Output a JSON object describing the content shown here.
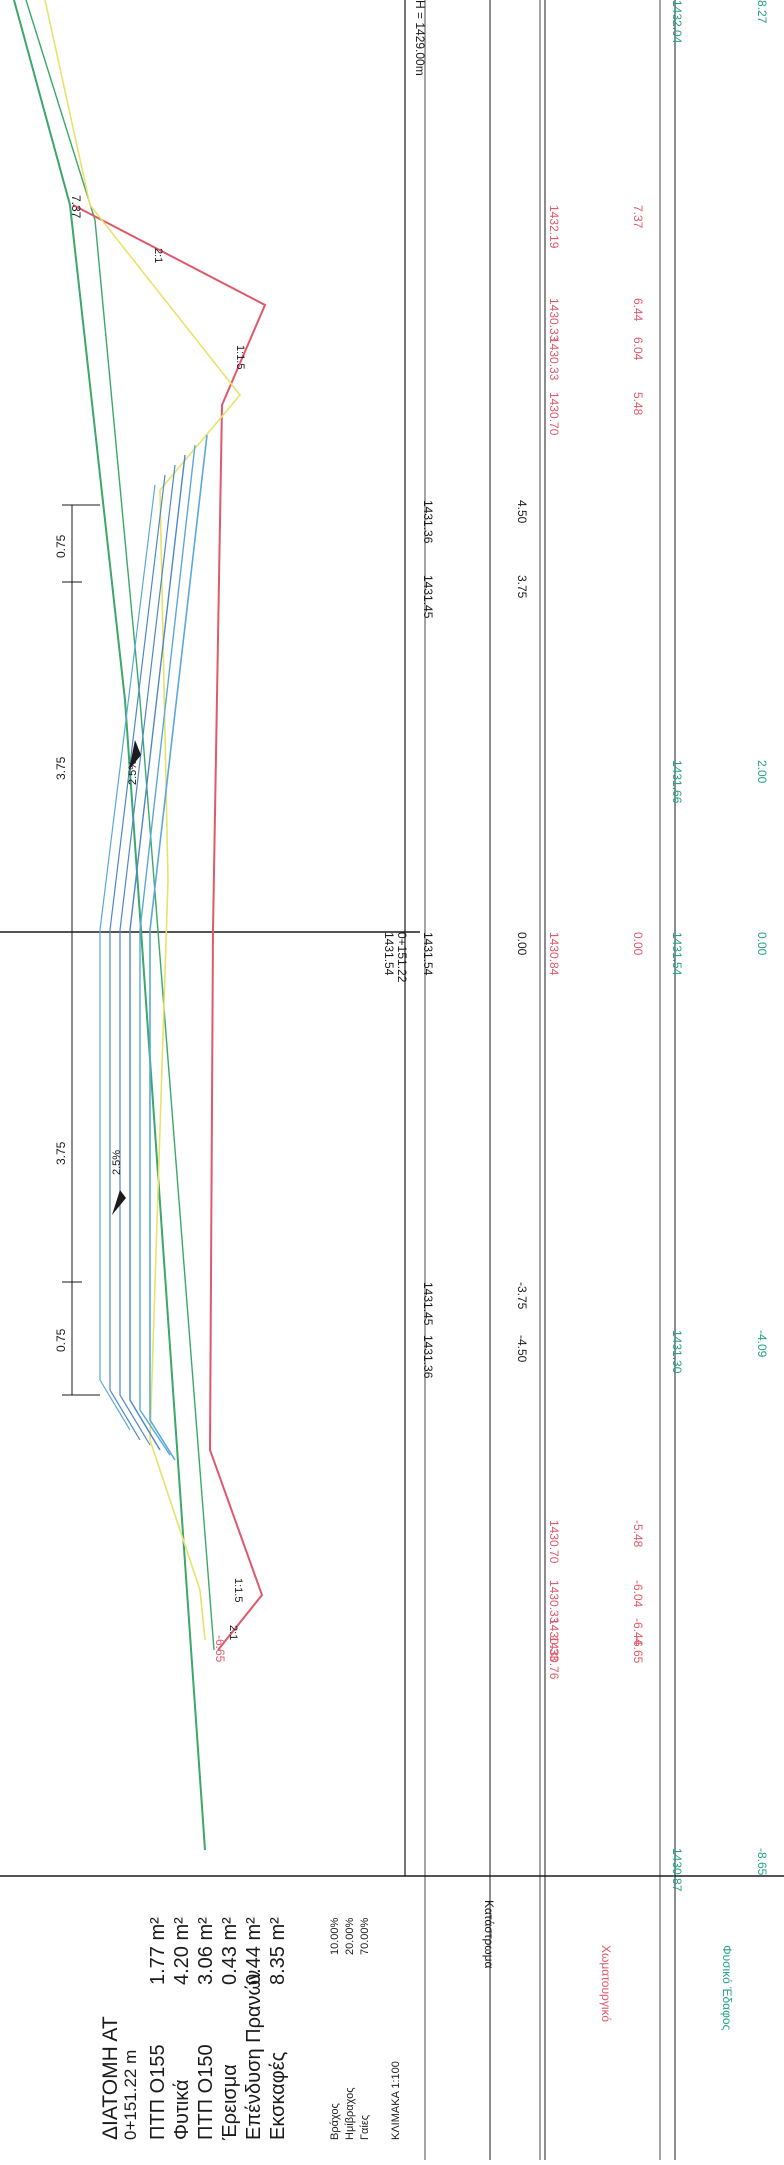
{
  "legend": {
    "title": "ΔΙΑΤΟΜΗ ΑΤ",
    "chainage": "0+151.22 m",
    "quantities": [
      {
        "label": "ΠΤΠ Ο155",
        "value": "1.77 m²"
      },
      {
        "label": "Φυτικά",
        "value": "4.20 m²"
      },
      {
        "label": "ΠΤΠ Ο150",
        "value": "3.06 m²"
      },
      {
        "label": "Έρεισμα",
        "value": "0.43 m²"
      },
      {
        "label": "Επένδυση Πρανών",
        "value": "0.44 m²"
      },
      {
        "label": "Εκσκαφές",
        "value": "8.35 m²"
      }
    ],
    "soil": [
      {
        "label": "Βράχος",
        "value": "10.00%"
      },
      {
        "label": "Ημίβραχος",
        "value": "20.00%"
      },
      {
        "label": "Γαίες",
        "value": "70.00%"
      }
    ],
    "scale": "ΚΛΙΜΑΚΑ 1:100"
  },
  "datum": "H = 1429.00m",
  "centerline": {
    "elevation": "1431.54",
    "chainage": "0+151.22"
  },
  "dims": {
    "left_shoulder": "0.75",
    "left_lane": "3.75",
    "right_lane": "3.75",
    "right_shoulder": "0.75"
  },
  "slope_labels": {
    "left_upper": "1:1.5",
    "left_lower": "2:1",
    "right_upper": "1:1.5",
    "right_lower": "2:1"
  },
  "crossfall": {
    "left": "2.5%",
    "right": "2.5%"
  },
  "edge_labels": {
    "left": "-6.65",
    "right": "7.37"
  },
  "rows": [
    {
      "name": "Κατάστρωμα",
      "color": "#1b1b1b",
      "stations": [
        {
          "offset": "-4.50",
          "elev": "1431.36"
        },
        {
          "offset": "-3.75",
          "elev": "1431.45"
        },
        {
          "offset": "0.00",
          "elev": "1431.54"
        },
        {
          "offset": "3.75",
          "elev": "1431.45"
        },
        {
          "offset": "4.50",
          "elev": "1431.36"
        }
      ]
    },
    {
      "name": "Χωματουργικό",
      "color": "#d4424f",
      "stations": [
        {
          "offset": "-6.65",
          "elev": "1430.76"
        },
        {
          "offset": "-6.44",
          "elev": "1430.33"
        },
        {
          "offset": "-6.04",
          "elev": "1430.33"
        },
        {
          "offset": "-5.48",
          "elev": "1430.70"
        },
        {
          "offset": "0.00",
          "elev": "1430.84"
        },
        {
          "offset": "5.48",
          "elev": "1430.70"
        },
        {
          "offset": "6.04",
          "elev": "1430.33"
        },
        {
          "offset": "6.44",
          "elev": "1430.33"
        },
        {
          "offset": "7.37",
          "elev": "1432.19"
        }
      ]
    },
    {
      "name": "Φυσικό Έδαφος",
      "color": "#22a384",
      "stations": [
        {
          "offset": "-8.65",
          "elev": "1430.87"
        },
        {
          "offset": "-4.09",
          "elev": "1431.30"
        },
        {
          "offset": "0.00",
          "elev": "1431.54"
        },
        {
          "offset": "2.00",
          "elev": "1431.66"
        },
        {
          "offset": "8.27",
          "elev": "1432.04"
        }
      ]
    }
  ],
  "colors": {
    "ground": "#3aa86a",
    "earthwork": "#e0586b",
    "subbase": "#4f87c9",
    "base": "#5aa9dc",
    "topsoil": "#e9e26a",
    "outline": "#1b1b1b"
  }
}
